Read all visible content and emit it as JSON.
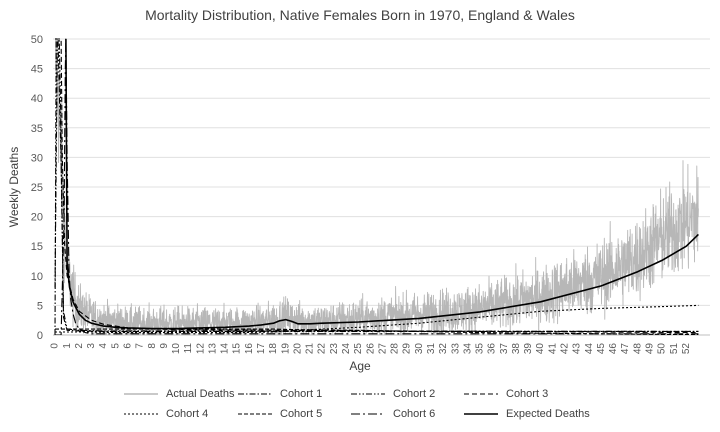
{
  "chart_data": {
    "type": "line",
    "title": "Mortality Distribution, Native Females Born in 1970, England & Wales",
    "xlabel": "Age",
    "ylabel": "Weekly Deaths",
    "xlim": [
      0,
      53
    ],
    "ylim": [
      0,
      50
    ],
    "x_ticks": [
      0,
      1,
      2,
      3,
      4,
      5,
      6,
      7,
      8,
      9,
      10,
      11,
      12,
      13,
      14,
      15,
      16,
      17,
      18,
      19,
      20,
      21,
      22,
      23,
      24,
      25,
      26,
      27,
      28,
      29,
      30,
      31,
      32,
      33,
      34,
      35,
      36,
      37,
      38,
      39,
      40,
      41,
      42,
      43,
      44,
      45,
      46,
      47,
      48,
      49,
      50,
      51,
      52
    ],
    "y_ticks": [
      0,
      5,
      10,
      15,
      20,
      25,
      30,
      35,
      40,
      45,
      50
    ],
    "grid": "horizontal",
    "legend_position": "bottom",
    "series": [
      {
        "name": "Actual Deaths",
        "style": "noisy",
        "color": "#b7b7b7",
        "dash": "",
        "x": [
          0,
          1,
          1.5,
          2,
          3,
          4,
          6,
          8,
          10,
          12,
          15,
          17,
          18,
          19,
          20,
          22,
          25,
          30,
          35,
          40,
          45,
          48,
          50,
          52,
          53
        ],
        "y": [
          50,
          11,
          6.5,
          4.5,
          3,
          2.5,
          2,
          2,
          2,
          2,
          2,
          2.2,
          2.6,
          3,
          2.5,
          2.3,
          2.8,
          3.5,
          4.5,
          6.5,
          10,
          13,
          16.5,
          19,
          20
        ]
      },
      {
        "name": "Cohort 1",
        "style": "line",
        "color": "#000000",
        "dash": "6 2 1.5 2",
        "x": [
          0,
          0.1,
          0.25,
          0.45,
          0.55,
          0.7,
          1,
          2,
          4,
          53
        ],
        "y": [
          0,
          50,
          50,
          33,
          25,
          3,
          0.8,
          0.7,
          0.6,
          0.6
        ]
      },
      {
        "name": "Cohort 2",
        "style": "line",
        "color": "#000000",
        "dash": "6 2 1.5 2 1.5 2",
        "x": [
          0,
          0.2,
          0.35,
          0.45,
          0.55,
          0.7,
          1,
          2,
          4,
          53
        ],
        "y": [
          8,
          50,
          50,
          40,
          22,
          4,
          1,
          0.8,
          0.7,
          0.6
        ]
      },
      {
        "name": "Cohort 3",
        "style": "line",
        "color": "#000000",
        "dash": "5 3",
        "x": [
          0,
          0.3,
          0.5,
          0.6,
          0.8,
          1,
          1.5,
          2,
          3,
          4,
          6,
          10,
          53
        ],
        "y": [
          50,
          50,
          50,
          30,
          15,
          10,
          6,
          4,
          2.5,
          1.8,
          1.2,
          0.9,
          0.4
        ]
      },
      {
        "name": "Cohort 4",
        "style": "line",
        "color": "#000000",
        "dash": "2 2",
        "x": [
          0,
          1,
          3,
          5,
          10,
          15,
          18,
          20,
          22,
          25,
          30,
          35,
          40,
          45,
          50,
          53
        ],
        "y": [
          0.5,
          0.5,
          0.5,
          0.4,
          0.4,
          0.4,
          0.5,
          0.8,
          1,
          1.3,
          2,
          3,
          4,
          4.5,
          4.8,
          5
        ]
      },
      {
        "name": "Cohort 5",
        "style": "line",
        "color": "#000000",
        "dash": "4 2",
        "x": [
          0,
          5,
          10,
          15,
          18,
          20,
          25,
          30,
          35,
          40,
          45,
          50,
          53
        ],
        "y": [
          1,
          1,
          1,
          1,
          1,
          0.9,
          0.8,
          0.6,
          0.4,
          0.3,
          0.2,
          0.1,
          0.1
        ]
      },
      {
        "name": "Cohort 6",
        "style": "line",
        "color": "#000000",
        "dash": "9 3 2 3",
        "x": [
          0,
          0.5,
          0.75,
          0.85,
          0.9,
          1,
          1.15,
          1.3,
          1.5,
          1.7,
          2,
          2.5,
          3,
          53
        ],
        "y": [
          0,
          0,
          20,
          45,
          50,
          30,
          11,
          6,
          3.5,
          2,
          1,
          0.4,
          0.2,
          0.2
        ]
      },
      {
        "name": "Expected Deaths",
        "style": "line",
        "color": "#000000",
        "dash": "",
        "width": 1.6,
        "x": [
          0.9,
          1,
          1.2,
          1.5,
          2,
          2.5,
          3,
          4,
          5,
          6,
          8,
          10,
          12,
          14,
          16,
          17,
          18,
          18.5,
          19,
          19.5,
          20,
          21,
          22,
          25,
          30,
          35,
          40,
          45,
          48,
          50,
          52,
          53
        ],
        "y": [
          50,
          12,
          8,
          5.5,
          3.5,
          2.5,
          2,
          1.5,
          1.3,
          1.2,
          1.1,
          1.1,
          1.2,
          1.3,
          1.5,
          1.7,
          2,
          2.4,
          2.6,
          2.3,
          1.9,
          1.9,
          2,
          2.2,
          2.8,
          3.9,
          5.6,
          8.3,
          10.7,
          12.6,
          15,
          17
        ]
      }
    ]
  }
}
